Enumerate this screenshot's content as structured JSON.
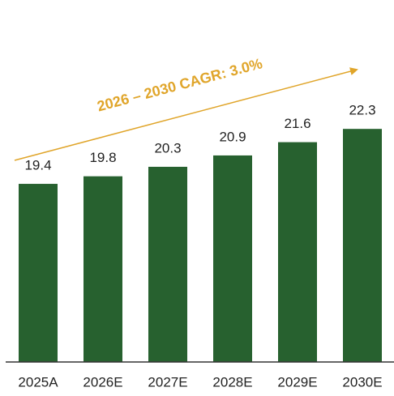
{
  "chart_data": {
    "type": "bar",
    "categories": [
      "2025A",
      "2026E",
      "2027E",
      "2028E",
      "2029E",
      "2030E"
    ],
    "values": [
      19.4,
      19.8,
      20.3,
      20.9,
      21.6,
      22.3
    ],
    "color": "#27612f",
    "ylim": [
      10,
      25
    ],
    "annotation": "2026 – 2030 CAGR: 3.0%",
    "annotation_color": "#e0a52a"
  }
}
